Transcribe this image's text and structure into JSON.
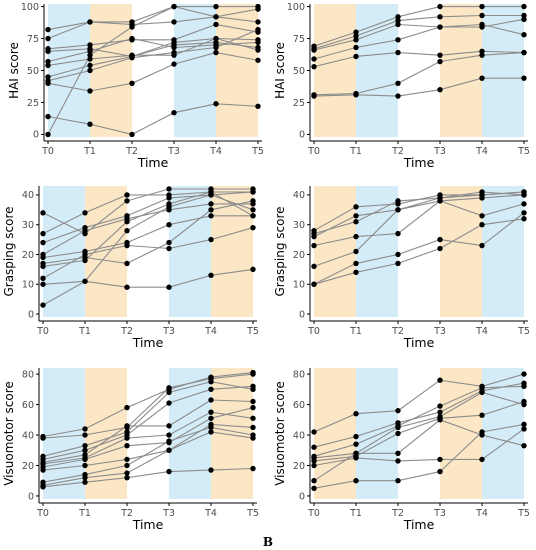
{
  "figure": {
    "panel_label": "B"
  },
  "colors": {
    "blue": "#d4ecf7",
    "orange": "#fbe7c6",
    "line": "#8c8c8c",
    "point": "#000000"
  },
  "chart_data": [
    {
      "type": "line",
      "xlabel": "Time",
      "ylabel": "HAI score",
      "categories": [
        "T0",
        "T1",
        "T2",
        "T3",
        "T4",
        "T5"
      ],
      "ylim": [
        -2,
        102
      ],
      "yticks": [
        0,
        25,
        50,
        75,
        100
      ],
      "shading": [
        "blue",
        "orange",
        "none",
        "blue",
        "orange"
      ],
      "grid": false,
      "series": [
        {
          "values": [
            82,
            88,
            88,
            100,
            100,
            100
          ]
        },
        {
          "values": [
            75,
            88,
            86,
            88,
            92,
            88
          ]
        },
        {
          "values": [
            67,
            70,
            74,
            74,
            86,
            80
          ]
        },
        {
          "values": [
            65,
            67,
            61,
            70,
            72,
            68
          ]
        },
        {
          "values": [
            57,
            65,
            75,
            68,
            70,
            72
          ]
        },
        {
          "values": [
            54,
            59,
            62,
            62,
            75,
            74
          ]
        },
        {
          "values": [
            45,
            54,
            61,
            72,
            75,
            66
          ]
        },
        {
          "values": [
            42,
            50,
            60,
            64,
            68,
            82
          ]
        },
        {
          "values": [
            40,
            34,
            40,
            55,
            64,
            58
          ]
        },
        {
          "values": [
            14,
            8,
            0,
            17,
            24,
            22
          ]
        },
        {
          "values": [
            0,
            62,
            84,
            100,
            92,
            98
          ]
        }
      ]
    },
    {
      "type": "line",
      "xlabel": "Time",
      "ylabel": "HAI score",
      "categories": [
        "T0",
        "T1",
        "T2",
        "T3",
        "T4",
        "T5"
      ],
      "ylim": [
        -2,
        102
      ],
      "yticks": [
        0,
        25,
        50,
        75,
        100
      ],
      "shading": [
        "orange",
        "blue",
        "none",
        "orange",
        "blue"
      ],
      "grid": false,
      "series": [
        {
          "values": [
            69,
            80,
            92,
            100,
            100,
            100
          ]
        },
        {
          "values": [
            67,
            77,
            89,
            92,
            93,
            93
          ]
        },
        {
          "values": [
            66,
            74,
            86,
            84,
            84,
            90
          ]
        },
        {
          "values": [
            59,
            68,
            74,
            84,
            86,
            78
          ]
        },
        {
          "values": [
            53,
            61,
            64,
            62,
            65,
            64
          ]
        },
        {
          "values": [
            31,
            32,
            40,
            57,
            62,
            64
          ]
        },
        {
          "values": [
            30,
            31,
            30,
            35,
            44,
            44
          ]
        }
      ]
    },
    {
      "type": "line",
      "xlabel": "Time",
      "ylabel": "Grasping score",
      "categories": [
        "T0",
        "T1",
        "T2",
        "T3",
        "T4",
        "T5"
      ],
      "ylim": [
        -1,
        43
      ],
      "yticks": [
        0,
        10,
        20,
        30,
        40
      ],
      "shading": [
        "blue",
        "orange",
        "none",
        "blue",
        "orange"
      ],
      "grid": false,
      "series": [
        {
          "values": [
            34,
            27,
            38,
            42,
            42,
            42
          ]
        },
        {
          "values": [
            27,
            34,
            40,
            40,
            41,
            41
          ]
        },
        {
          "values": [
            24,
            29,
            33,
            39,
            40,
            41
          ]
        },
        {
          "values": [
            20,
            28,
            32,
            35,
            37,
            37
          ]
        },
        {
          "values": [
            19,
            21,
            24,
            30,
            33,
            33
          ]
        },
        {
          "values": [
            17,
            19,
            17,
            24,
            35,
            38
          ]
        },
        {
          "values": [
            16,
            18,
            31,
            37,
            41,
            33
          ]
        },
        {
          "values": [
            12,
            20,
            23,
            22,
            25,
            29
          ]
        },
        {
          "values": [
            10,
            11,
            9,
            9,
            13,
            15
          ]
        },
        {
          "values": [
            3,
            11,
            28,
            36,
            40,
            35
          ]
        }
      ]
    },
    {
      "type": "line",
      "xlabel": "Time",
      "ylabel": "Grasping score",
      "categories": [
        "T0",
        "T1",
        "T2",
        "T3",
        "T4",
        "T5"
      ],
      "ylim": [
        -1,
        43
      ],
      "yticks": [
        0,
        10,
        20,
        30,
        40
      ],
      "shading": [
        "orange",
        "blue",
        "none",
        "orange",
        "blue"
      ],
      "grid": false,
      "series": [
        {
          "values": [
            28,
            36,
            37,
            40,
            40,
            41
          ]
        },
        {
          "values": [
            27,
            31,
            38,
            39,
            41,
            40
          ]
        },
        {
          "values": [
            26,
            33,
            35,
            38,
            39,
            40
          ]
        },
        {
          "values": [
            23,
            26,
            27,
            38,
            33,
            37
          ]
        },
        {
          "values": [
            16,
            21,
            35,
            39,
            40,
            41
          ]
        },
        {
          "values": [
            10,
            17,
            20,
            25,
            23,
            34
          ]
        },
        {
          "values": [
            10,
            14,
            17,
            22,
            30,
            32
          ]
        }
      ]
    },
    {
      "type": "line",
      "xlabel": "Time",
      "ylabel": "Visuomotor score",
      "categories": [
        "T0",
        "T1",
        "T2",
        "T3",
        "T4",
        "T5"
      ],
      "ylim": [
        -2,
        84
      ],
      "yticks": [
        0,
        20,
        40,
        60,
        80
      ],
      "shading": [
        "blue",
        "orange",
        "none",
        "blue",
        "orange"
      ],
      "grid": false,
      "series": [
        {
          "values": [
            39,
            44,
            58,
            70,
            78,
            81
          ]
        },
        {
          "values": [
            38,
            40,
            45,
            71,
            77,
            80
          ]
        },
        {
          "values": [
            26,
            33,
            42,
            68,
            75,
            70
          ]
        },
        {
          "values": [
            24,
            30,
            40,
            61,
            70,
            72
          ]
        },
        {
          "values": [
            22,
            27,
            46,
            46,
            63,
            62
          ]
        },
        {
          "values": [
            21,
            25,
            38,
            40,
            55,
            51
          ]
        },
        {
          "values": [
            19,
            24,
            33,
            35,
            51,
            58
          ]
        },
        {
          "values": [
            17,
            20,
            24,
            30,
            47,
            45
          ]
        },
        {
          "values": [
            9,
            14,
            20,
            36,
            45,
            40
          ]
        },
        {
          "values": [
            7,
            12,
            15,
            30,
            42,
            38
          ]
        },
        {
          "values": [
            6,
            9,
            12,
            16,
            17,
            18
          ]
        }
      ]
    },
    {
      "type": "line",
      "xlabel": "Time",
      "ylabel": "Visuomotor score",
      "categories": [
        "T0",
        "T1",
        "T2",
        "T3",
        "T4",
        "T5"
      ],
      "ylim": [
        -2,
        84
      ],
      "yticks": [
        0,
        20,
        40,
        60,
        80
      ],
      "shading": [
        "orange",
        "blue",
        "none",
        "orange",
        "blue"
      ],
      "grid": false,
      "series": [
        {
          "values": [
            42,
            54,
            56,
            76,
            72,
            80
          ]
        },
        {
          "values": [
            32,
            39,
            48,
            55,
            69,
            74
          ]
        },
        {
          "values": [
            26,
            34,
            46,
            59,
            71,
            72
          ]
        },
        {
          "values": [
            25,
            28,
            45,
            52,
            68,
            60
          ]
        },
        {
          "values": [
            23,
            26,
            41,
            51,
            53,
            62
          ]
        },
        {
          "values": [
            20,
            25,
            23,
            24,
            24,
            44
          ]
        },
        {
          "values": [
            10,
            28,
            28,
            50,
            40,
            33
          ]
        },
        {
          "values": [
            5,
            10,
            10,
            16,
            42,
            47
          ]
        }
      ]
    }
  ]
}
